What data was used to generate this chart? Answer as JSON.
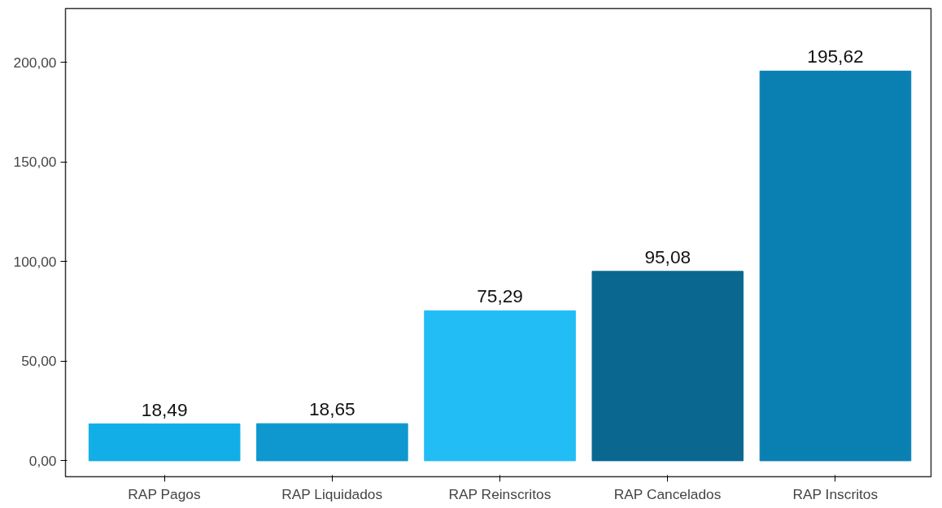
{
  "chart_data": {
    "type": "bar",
    "categories": [
      "RAP Pagos",
      "RAP Liquidados",
      "RAP Reinscritos",
      "RAP Cancelados",
      "RAP Inscritos"
    ],
    "values": [
      18.49,
      18.65,
      75.29,
      95.08,
      195.62
    ],
    "colors": [
      "#12aee8",
      "#0e98cf",
      "#22bdf5",
      "#0a6890",
      "#0a80b2"
    ],
    "value_labels": [
      "18,49",
      "18,65",
      "75,29",
      "95,08",
      "195,62"
    ],
    "ylim": [
      -8,
      227
    ],
    "yticks": [
      {
        "value": 0,
        "label": "0,00"
      },
      {
        "value": 50,
        "label": "50,00"
      },
      {
        "value": 100,
        "label": "100,00"
      },
      {
        "value": 150,
        "label": "150,00"
      },
      {
        "value": 200,
        "label": "200,00"
      }
    ],
    "grid": false
  }
}
